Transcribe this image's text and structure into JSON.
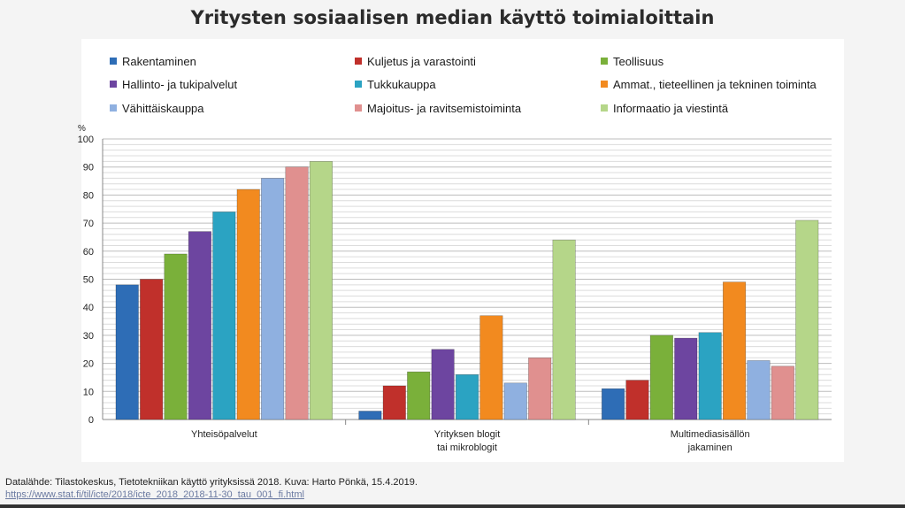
{
  "title": "Yritysten sosiaalisen median käyttö toimialoittain",
  "source": {
    "text": "Datalähde: Tilastokeskus, Tietotekniikan käyttö yrityksissä 2018. Kuva: Harto Pönkä, 15.4.2019.",
    "link": "https://www.stat.fi/til/icte/2018/icte_2018_2018-11-30_tau_001_fi.html"
  },
  "chart_data": {
    "type": "bar",
    "title": "Yritysten sosiaalisen median käyttö toimialoittain",
    "ylabel": "%",
    "ylim": [
      0,
      100
    ],
    "yticks": [
      0,
      10,
      20,
      30,
      40,
      50,
      60,
      70,
      80,
      90,
      100
    ],
    "grid": true,
    "legend_position": "top",
    "categories": [
      [
        "Yhteisöpalvelut"
      ],
      [
        "Yrityksen blogit",
        "tai mikroblogit"
      ],
      [
        "Multimediasisällön",
        "jakaminen"
      ]
    ],
    "series": [
      {
        "name": "Rakentaminen",
        "color": "#2e6db6",
        "values": [
          48,
          3,
          11
        ]
      },
      {
        "name": "Kuljetus ja varastointi",
        "color": "#c0302b",
        "values": [
          50,
          12,
          14
        ]
      },
      {
        "name": "Teollisuus",
        "color": "#7ab03a",
        "values": [
          59,
          17,
          30
        ]
      },
      {
        "name": "Hallinto- ja tukipalvelut",
        "color": "#6d45a0",
        "values": [
          67,
          25,
          29
        ]
      },
      {
        "name": "Tukkukauppa",
        "color": "#2ba3c2",
        "values": [
          74,
          16,
          31
        ]
      },
      {
        "name": "Ammat., tieteellinen ja tekninen toiminta",
        "color": "#f28a1f",
        "values": [
          82,
          37,
          49
        ]
      },
      {
        "name": "Vähittäiskauppa",
        "color": "#8fb0e0",
        "values": [
          86,
          13,
          21
        ]
      },
      {
        "name": "Majoitus- ja ravitsemistoiminta",
        "color": "#e0908f",
        "values": [
          90,
          22,
          19
        ]
      },
      {
        "name": "Informaatio ja viestintä",
        "color": "#b5d689",
        "values": [
          92,
          64,
          71
        ]
      }
    ]
  }
}
